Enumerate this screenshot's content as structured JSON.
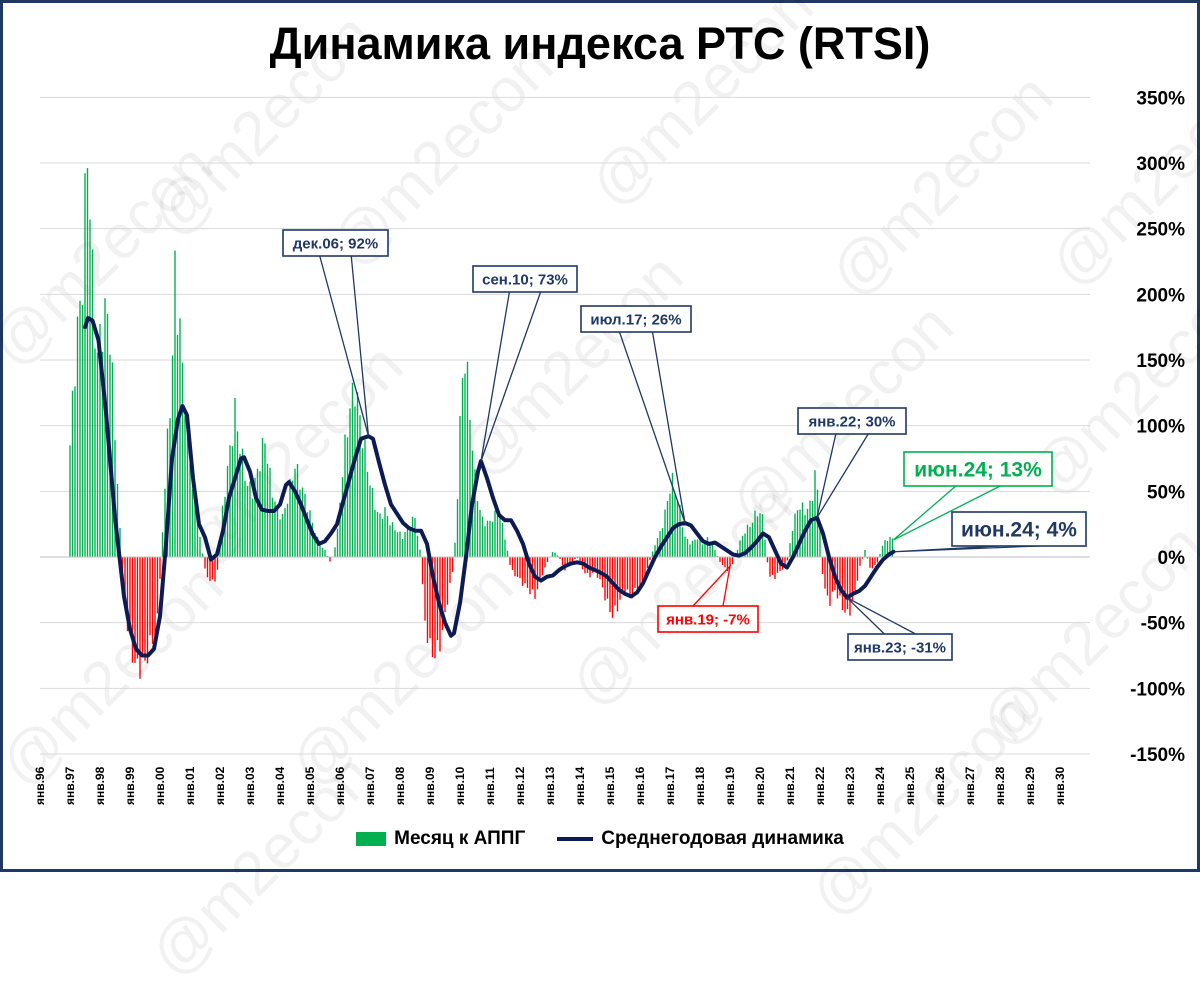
{
  "title": "Динамика индекса РТС (RTSI)",
  "watermark": "@m2econ",
  "legend": {
    "bars_label": "Месяц к АППГ",
    "line_label": "Среднегодовая динамика"
  },
  "colors": {
    "positive_bar": "#00b050",
    "negative_bar": "#ff0000",
    "line": "#0d1b54",
    "grid": "#d9d9d9",
    "frame": "#1f3864"
  },
  "chart_data": {
    "type": "bar+line",
    "title": "Динамика индекса РТС (RTSI)",
    "ylim": [
      -150,
      350
    ],
    "yticks": [
      -150,
      -100,
      -50,
      0,
      50,
      100,
      150,
      200,
      250,
      300,
      350
    ],
    "ytick_labels": [
      "-150%",
      "-100%",
      "-50%",
      "0%",
      "50%",
      "100%",
      "150%",
      "200%",
      "250%",
      "300%",
      "350%"
    ],
    "y_unit": "%",
    "x_range": [
      1996,
      2031
    ],
    "xtick_labels": [
      "янв.96",
      "янв.97",
      "янв.98",
      "янв.99",
      "янв.00",
      "янв.01",
      "янв.02",
      "янв.03",
      "янв.04",
      "янв.05",
      "янв.06",
      "янв.07",
      "янв.08",
      "янв.09",
      "янв.10",
      "янв.11",
      "янв.12",
      "янв.13",
      "янв.14",
      "янв.15",
      "янв.16",
      "янв.17",
      "янв.18",
      "янв.19",
      "янв.20",
      "янв.21",
      "янв.22",
      "янв.23",
      "янв.24",
      "янв.25",
      "янв.26",
      "янв.27",
      "янв.28",
      "янв.29",
      "янв.30"
    ],
    "grid": true,
    "legend_position": "bottom",
    "series": [
      {
        "name": "Месяц к АППГ",
        "type": "bar",
        "anchors": [
          [
            1997.0,
            85
          ],
          [
            1997.2,
            160
          ],
          [
            1997.4,
            205
          ],
          [
            1997.6,
            320
          ],
          [
            1997.75,
            210
          ],
          [
            1997.9,
            150
          ],
          [
            1998.1,
            180
          ],
          [
            1998.3,
            185
          ],
          [
            1998.5,
            95
          ],
          [
            1998.6,
            50
          ],
          [
            1998.7,
            5
          ],
          [
            1998.8,
            -30
          ],
          [
            1998.95,
            -60
          ],
          [
            1999.2,
            -85
          ],
          [
            1999.5,
            -80
          ],
          [
            1999.7,
            -65
          ],
          [
            1999.9,
            -55
          ],
          [
            2000.05,
            5
          ],
          [
            2000.2,
            70
          ],
          [
            2000.4,
            140
          ],
          [
            2000.5,
            215
          ],
          [
            2000.7,
            160
          ],
          [
            2000.9,
            100
          ],
          [
            2001.1,
            50
          ],
          [
            2001.3,
            20
          ],
          [
            2001.5,
            -10
          ],
          [
            2001.7,
            -20
          ],
          [
            2001.9,
            -15
          ],
          [
            2002.1,
            40
          ],
          [
            2002.3,
            75
          ],
          [
            2002.5,
            110
          ],
          [
            2002.7,
            80
          ],
          [
            2002.9,
            55
          ],
          [
            2003.1,
            50
          ],
          [
            2003.3,
            70
          ],
          [
            2003.5,
            90
          ],
          [
            2003.7,
            55
          ],
          [
            2003.9,
            35
          ],
          [
            2004.1,
            30
          ],
          [
            2004.3,
            50
          ],
          [
            2004.5,
            70
          ],
          [
            2004.7,
            55
          ],
          [
            2004.9,
            40
          ],
          [
            2005.1,
            25
          ],
          [
            2005.3,
            10
          ],
          [
            2005.5,
            5
          ],
          [
            2005.7,
            -5
          ],
          [
            2005.9,
            15
          ],
          [
            2006.1,
            70
          ],
          [
            2006.3,
            110
          ],
          [
            2006.5,
            130
          ],
          [
            2006.7,
            100
          ],
          [
            2006.9,
            70
          ],
          [
            2007.1,
            45
          ],
          [
            2007.3,
            30
          ],
          [
            2007.5,
            35
          ],
          [
            2007.7,
            25
          ],
          [
            2007.9,
            20
          ],
          [
            2008.1,
            15
          ],
          [
            2008.3,
            25
          ],
          [
            2008.5,
            30
          ],
          [
            2008.7,
            0
          ],
          [
            2008.8,
            -45
          ],
          [
            2009.0,
            -70
          ],
          [
            2009.2,
            -75
          ],
          [
            2009.4,
            -60
          ],
          [
            2009.6,
            -30
          ],
          [
            2009.8,
            -5
          ],
          [
            2009.9,
            40
          ],
          [
            2010.0,
            100
          ],
          [
            2010.15,
            160
          ],
          [
            2010.3,
            120
          ],
          [
            2010.5,
            60
          ],
          [
            2010.7,
            30
          ],
          [
            2010.9,
            25
          ],
          [
            2011.1,
            30
          ],
          [
            2011.3,
            35
          ],
          [
            2011.5,
            15
          ],
          [
            2011.7,
            -10
          ],
          [
            2011.9,
            -15
          ],
          [
            2012.1,
            -20
          ],
          [
            2012.3,
            -25
          ],
          [
            2012.5,
            -30
          ],
          [
            2012.7,
            -15
          ],
          [
            2012.9,
            -5
          ],
          [
            2013.1,
            5
          ],
          [
            2013.3,
            0
          ],
          [
            2013.5,
            -10
          ],
          [
            2013.7,
            -5
          ],
          [
            2013.9,
            0
          ],
          [
            2014.1,
            -10
          ],
          [
            2014.3,
            -15
          ],
          [
            2014.5,
            -10
          ],
          [
            2014.7,
            -20
          ],
          [
            2014.9,
            -35
          ],
          [
            2015.1,
            -45
          ],
          [
            2015.3,
            -35
          ],
          [
            2015.5,
            -25
          ],
          [
            2015.7,
            -30
          ],
          [
            2015.9,
            -25
          ],
          [
            2016.1,
            -20
          ],
          [
            2016.3,
            -5
          ],
          [
            2016.5,
            10
          ],
          [
            2016.7,
            20
          ],
          [
            2016.9,
            40
          ],
          [
            2017.05,
            60
          ],
          [
            2017.3,
            40
          ],
          [
            2017.5,
            15
          ],
          [
            2017.7,
            10
          ],
          [
            2017.9,
            15
          ],
          [
            2018.1,
            10
          ],
          [
            2018.3,
            15
          ],
          [
            2018.5,
            5
          ],
          [
            2018.7,
            -5
          ],
          [
            2018.9,
            -10
          ],
          [
            2019.1,
            -5
          ],
          [
            2019.3,
            10
          ],
          [
            2019.5,
            20
          ],
          [
            2019.7,
            25
          ],
          [
            2019.9,
            35
          ],
          [
            2020.1,
            30
          ],
          [
            2020.3,
            -15
          ],
          [
            2020.5,
            -15
          ],
          [
            2020.7,
            -10
          ],
          [
            2020.9,
            -5
          ],
          [
            2021.1,
            25
          ],
          [
            2021.3,
            40
          ],
          [
            2021.5,
            35
          ],
          [
            2021.7,
            40
          ],
          [
            2021.85,
            65
          ],
          [
            2022.0,
            30
          ],
          [
            2022.1,
            -20
          ],
          [
            2022.3,
            -35
          ],
          [
            2022.5,
            -25
          ],
          [
            2022.7,
            -35
          ],
          [
            2022.9,
            -45
          ],
          [
            2023.1,
            -35
          ],
          [
            2023.3,
            -10
          ],
          [
            2023.5,
            5
          ],
          [
            2023.7,
            -10
          ],
          [
            2023.9,
            -5
          ],
          [
            2024.1,
            10
          ],
          [
            2024.3,
            15
          ],
          [
            2024.45,
            13
          ]
        ]
      },
      {
        "name": "Среднегодовая динамика",
        "type": "line",
        "points": [
          [
            1997.5,
            175
          ],
          [
            1997.6,
            182
          ],
          [
            1997.75,
            180
          ],
          [
            1997.95,
            165
          ],
          [
            1998.2,
            110
          ],
          [
            1998.5,
            30
          ],
          [
            1998.8,
            -30
          ],
          [
            1999.0,
            -55
          ],
          [
            1999.2,
            -70
          ],
          [
            1999.4,
            -75
          ],
          [
            1999.6,
            -75
          ],
          [
            1999.8,
            -70
          ],
          [
            2000.0,
            -45
          ],
          [
            2000.2,
            10
          ],
          [
            2000.4,
            75
          ],
          [
            2000.6,
            105
          ],
          [
            2000.75,
            115
          ],
          [
            2000.9,
            108
          ],
          [
            2001.1,
            60
          ],
          [
            2001.3,
            25
          ],
          [
            2001.5,
            15
          ],
          [
            2001.7,
            -2
          ],
          [
            2001.9,
            2
          ],
          [
            2002.1,
            20
          ],
          [
            2002.3,
            45
          ],
          [
            2002.5,
            60
          ],
          [
            2002.7,
            75
          ],
          [
            2002.8,
            76
          ],
          [
            2003.0,
            65
          ],
          [
            2003.2,
            45
          ],
          [
            2003.4,
            36
          ],
          [
            2003.6,
            35
          ],
          [
            2003.8,
            35
          ],
          [
            2004.0,
            40
          ],
          [
            2004.2,
            55
          ],
          [
            2004.3,
            57
          ],
          [
            2004.5,
            50
          ],
          [
            2004.7,
            40
          ],
          [
            2004.9,
            28
          ],
          [
            2005.1,
            17
          ],
          [
            2005.3,
            10
          ],
          [
            2005.5,
            12
          ],
          [
            2005.7,
            18
          ],
          [
            2005.9,
            25
          ],
          [
            2006.2,
            50
          ],
          [
            2006.5,
            75
          ],
          [
            2006.7,
            90
          ],
          [
            2006.95,
            92
          ],
          [
            2007.1,
            90
          ],
          [
            2007.3,
            72
          ],
          [
            2007.5,
            55
          ],
          [
            2007.7,
            40
          ],
          [
            2007.9,
            33
          ],
          [
            2008.1,
            26
          ],
          [
            2008.3,
            22
          ],
          [
            2008.5,
            20
          ],
          [
            2008.7,
            20
          ],
          [
            2008.9,
            10
          ],
          [
            2009.1,
            -15
          ],
          [
            2009.3,
            -35
          ],
          [
            2009.5,
            -50
          ],
          [
            2009.7,
            -60
          ],
          [
            2009.8,
            -58
          ],
          [
            2010.0,
            -35
          ],
          [
            2010.2,
            0
          ],
          [
            2010.4,
            40
          ],
          [
            2010.6,
            65
          ],
          [
            2010.7,
            73
          ],
          [
            2010.9,
            60
          ],
          [
            2011.1,
            45
          ],
          [
            2011.3,
            32
          ],
          [
            2011.5,
            28
          ],
          [
            2011.7,
            28
          ],
          [
            2011.9,
            20
          ],
          [
            2012.1,
            10
          ],
          [
            2012.3,
            -5
          ],
          [
            2012.5,
            -15
          ],
          [
            2012.7,
            -18
          ],
          [
            2012.9,
            -15
          ],
          [
            2013.1,
            -14
          ],
          [
            2013.3,
            -10
          ],
          [
            2013.5,
            -7
          ],
          [
            2013.7,
            -5
          ],
          [
            2013.9,
            -4
          ],
          [
            2014.1,
            -5
          ],
          [
            2014.3,
            -8
          ],
          [
            2014.5,
            -10
          ],
          [
            2014.7,
            -12
          ],
          [
            2014.9,
            -15
          ],
          [
            2015.1,
            -20
          ],
          [
            2015.3,
            -25
          ],
          [
            2015.5,
            -28
          ],
          [
            2015.7,
            -30
          ],
          [
            2015.9,
            -27
          ],
          [
            2016.1,
            -20
          ],
          [
            2016.3,
            -10
          ],
          [
            2016.5,
            0
          ],
          [
            2016.7,
            8
          ],
          [
            2016.9,
            15
          ],
          [
            2017.1,
            22
          ],
          [
            2017.3,
            25
          ],
          [
            2017.5,
            26
          ],
          [
            2017.7,
            24
          ],
          [
            2017.9,
            18
          ],
          [
            2018.1,
            12
          ],
          [
            2018.3,
            10
          ],
          [
            2018.5,
            11
          ],
          [
            2018.7,
            8
          ],
          [
            2018.9,
            5
          ],
          [
            2019.1,
            2
          ],
          [
            2019.3,
            1
          ],
          [
            2019.5,
            3
          ],
          [
            2019.7,
            7
          ],
          [
            2019.9,
            12
          ],
          [
            2020.1,
            18
          ],
          [
            2020.3,
            15
          ],
          [
            2020.5,
            5
          ],
          [
            2020.7,
            -5
          ],
          [
            2020.9,
            -8
          ],
          [
            2021.1,
            0
          ],
          [
            2021.3,
            10
          ],
          [
            2021.5,
            20
          ],
          [
            2021.7,
            28
          ],
          [
            2021.9,
            30
          ],
          [
            2022.1,
            18
          ],
          [
            2022.3,
            0
          ],
          [
            2022.5,
            -15
          ],
          [
            2022.7,
            -25
          ],
          [
            2022.9,
            -31
          ],
          [
            2023.1,
            -28
          ],
          [
            2023.3,
            -26
          ],
          [
            2023.5,
            -22
          ],
          [
            2023.7,
            -15
          ],
          [
            2023.9,
            -8
          ],
          [
            2024.1,
            -2
          ],
          [
            2024.3,
            2
          ],
          [
            2024.45,
            4
          ]
        ]
      }
    ],
    "annotations": [
      {
        "label": "дек.06; 92%",
        "x": 2006.95,
        "y": 92,
        "color": "#1f3864"
      },
      {
        "label": "сен.10; 73%",
        "x": 2010.7,
        "y": 73,
        "color": "#1f3864"
      },
      {
        "label": "июл.17; 26%",
        "x": 2017.5,
        "y": 26,
        "color": "#1f3864"
      },
      {
        "label": "янв.19; -7%",
        "x": 2019.0,
        "y": -7,
        "color": "#ff0000"
      },
      {
        "label": "янв.22; 30%",
        "x": 2021.9,
        "y": 30,
        "color": "#1f3864"
      },
      {
        "label": "янв.23; -31%",
        "x": 2022.9,
        "y": -31,
        "color": "#1f3864"
      },
      {
        "label": "июн.24; 13%",
        "x": 2024.45,
        "y": 13,
        "color": "#00b050"
      },
      {
        "label": "июн.24; 4%",
        "x": 2024.45,
        "y": 4,
        "color": "#1f3864"
      }
    ]
  }
}
